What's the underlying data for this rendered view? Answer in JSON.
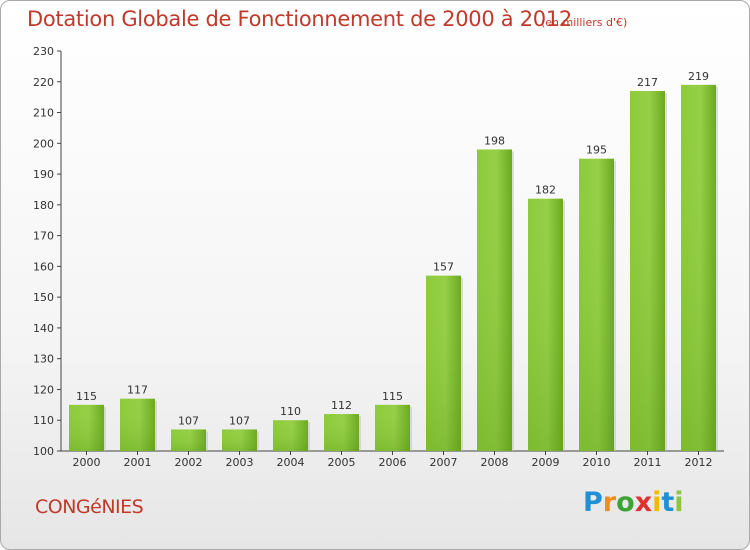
{
  "title": "Dotation Globale de Fonctionnement de 2000 à 2012",
  "subtitle": "(en milliers d'€)",
  "commune": "CONGéNIES",
  "logo": {
    "letters": [
      {
        "char": "P",
        "color": "#1f8fd6"
      },
      {
        "char": "r",
        "color": "#f28c1b"
      },
      {
        "char": "o",
        "color": "#3aa535"
      },
      {
        "char": "x",
        "color": "#e0312f"
      },
      {
        "char": "i",
        "color": "#f5b800"
      },
      {
        "char": "t",
        "color": "#1f8fd6"
      },
      {
        "char": "i",
        "color": "#8cc63f"
      }
    ]
  },
  "chart_data": {
    "type": "bar",
    "categories": [
      "2000",
      "2001",
      "2002",
      "2003",
      "2004",
      "2005",
      "2006",
      "2007",
      "2008",
      "2009",
      "2010",
      "2011",
      "2012"
    ],
    "values": [
      115,
      117,
      107,
      107,
      110,
      112,
      115,
      157,
      198,
      182,
      195,
      217,
      219
    ],
    "title": "Dotation Globale de Fonctionnement de 2000 à 2012",
    "subtitle": "(en milliers d'€)",
    "ylim": [
      100,
      230
    ],
    "yticks": [
      100,
      110,
      120,
      130,
      140,
      150,
      160,
      170,
      180,
      190,
      200,
      210,
      220,
      230
    ],
    "grid": false,
    "bar_color": "#7fbe2a"
  }
}
